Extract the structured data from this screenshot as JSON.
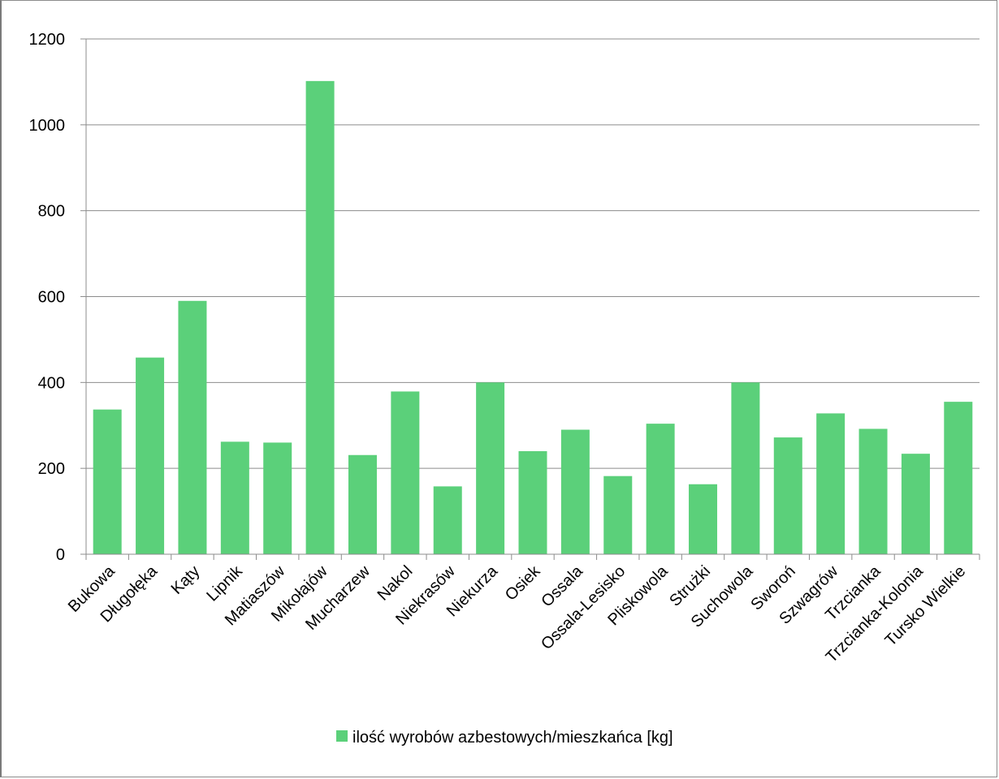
{
  "chart_data": {
    "type": "bar",
    "categories": [
      "Bukowa",
      "Długołęka",
      "Kąty",
      "Lipnik",
      "Matiaszów",
      "Mikołajów",
      "Mucharzew",
      "Nakol",
      "Niekrasów",
      "Niekurza",
      "Osiek",
      "Ossala",
      "Ossala-Lesisko",
      "Pliskowola",
      "Strużki",
      "Suchowola",
      "Sworoń",
      "Szwagrów",
      "Trzcianka",
      "Trzcianka-Kolonia",
      "Tursko Wielkie"
    ],
    "series": [
      {
        "name": "ilość wyrobów azbestowych/mieszkańca [kg]",
        "values": [
          337,
          458,
          590,
          262,
          260,
          1102,
          231,
          379,
          158,
          400,
          240,
          290,
          182,
          304,
          163,
          400,
          272,
          328,
          292,
          234,
          355
        ]
      }
    ],
    "title": "",
    "xlabel": "",
    "ylabel": "",
    "ylim": [
      0,
      1200
    ],
    "yticks": [
      "0",
      "200",
      "400",
      "600",
      "800",
      "1000",
      "1200"
    ],
    "grid": true,
    "legend_position": "bottom",
    "colors": {
      "bar": "#5bd07a",
      "grid": "#8c8c8c",
      "axis": "#8c8c8c"
    }
  }
}
